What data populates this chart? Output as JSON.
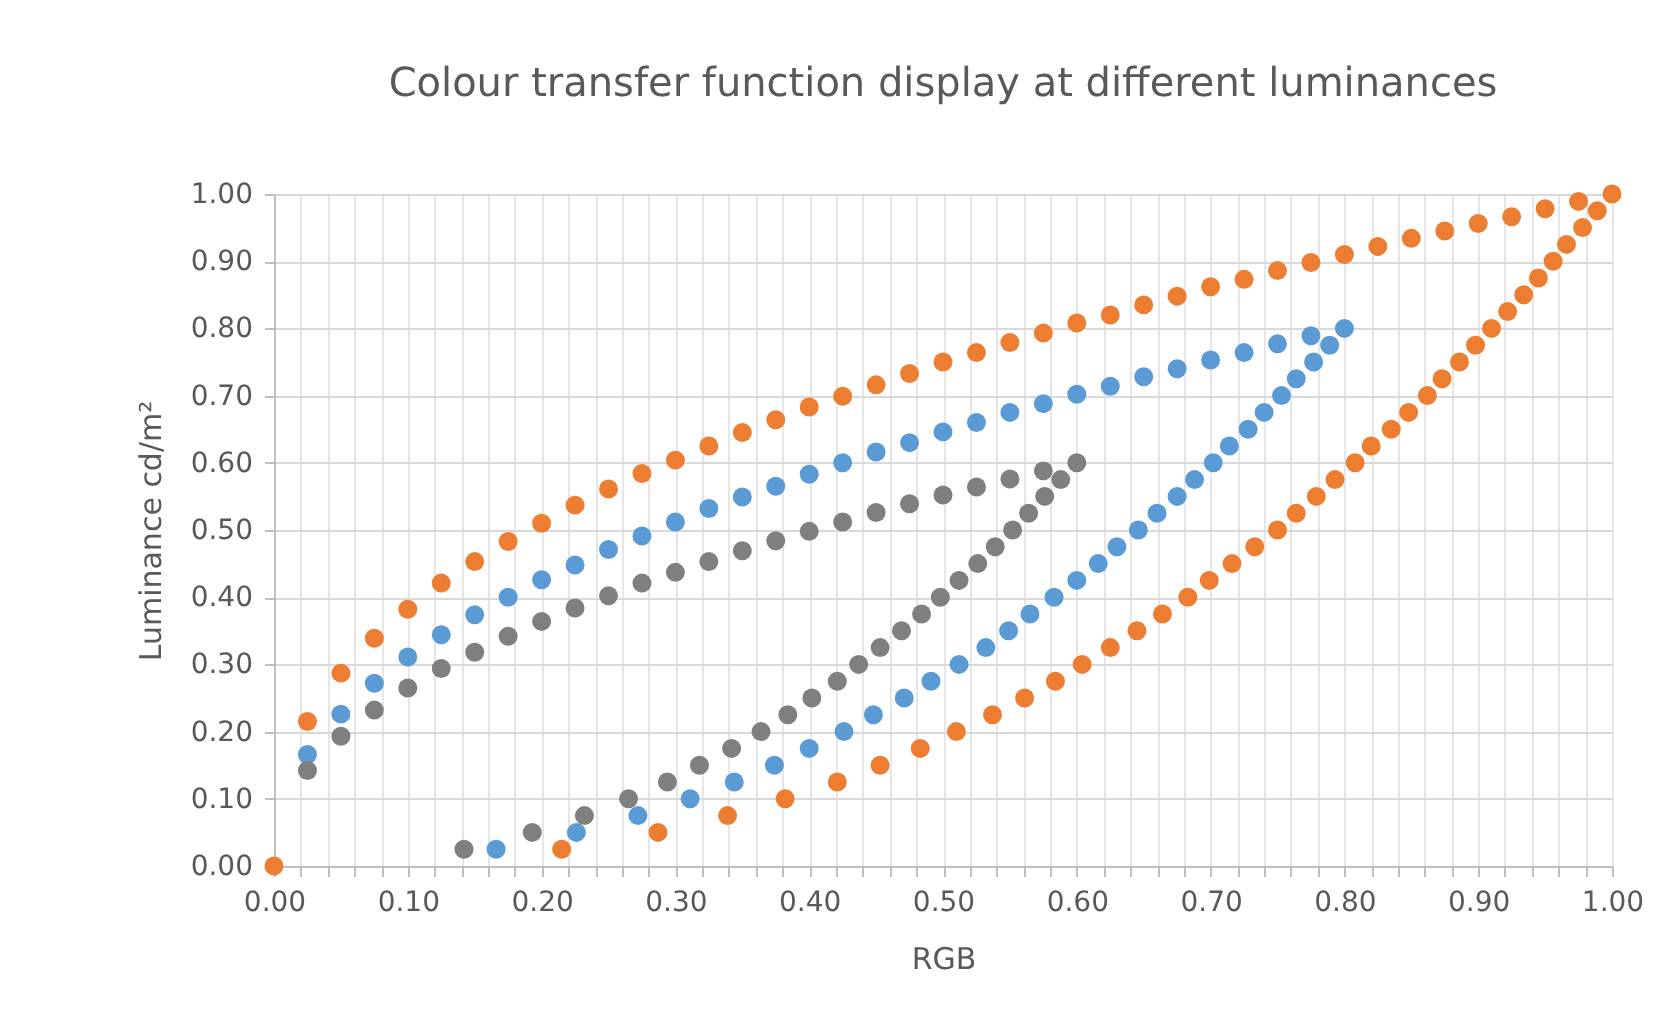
{
  "chart_data": {
    "type": "scatter",
    "title": "Colour transfer function display at different luminances",
    "xlabel": "RGB",
    "ylabel": "Luminance cd/m²",
    "xlim": [
      0,
      1
    ],
    "ylim": [
      0,
      1
    ],
    "xticks": [
      {
        "value": 0,
        "label": "0.00"
      },
      {
        "value": 0.02,
        "label": null
      },
      {
        "value": 0.04,
        "label": null
      },
      {
        "value": 0.06,
        "label": null
      },
      {
        "value": 0.08,
        "label": null
      },
      {
        "value": 0.1,
        "label": "0.10"
      },
      {
        "value": 0.12,
        "label": null
      },
      {
        "value": 0.14,
        "label": null
      },
      {
        "value": 0.16,
        "label": null
      },
      {
        "value": 0.18,
        "label": null
      },
      {
        "value": 0.2,
        "label": "0.20"
      },
      {
        "value": 0.22,
        "label": null
      },
      {
        "value": 0.24,
        "label": null
      },
      {
        "value": 0.26,
        "label": null
      },
      {
        "value": 0.28,
        "label": null
      },
      {
        "value": 0.3,
        "label": "0.30"
      },
      {
        "value": 0.32,
        "label": null
      },
      {
        "value": 0.34,
        "label": null
      },
      {
        "value": 0.36,
        "label": null
      },
      {
        "value": 0.38,
        "label": null
      },
      {
        "value": 0.4,
        "label": "0.40"
      },
      {
        "value": 0.42,
        "label": null
      },
      {
        "value": 0.44,
        "label": null
      },
      {
        "value": 0.46,
        "label": null
      },
      {
        "value": 0.48,
        "label": null
      },
      {
        "value": 0.5,
        "label": "0.50"
      },
      {
        "value": 0.52,
        "label": null
      },
      {
        "value": 0.54,
        "label": null
      },
      {
        "value": 0.56,
        "label": null
      },
      {
        "value": 0.58,
        "label": null
      },
      {
        "value": 0.6,
        "label": "0.60"
      },
      {
        "value": 0.62,
        "label": null
      },
      {
        "value": 0.64,
        "label": null
      },
      {
        "value": 0.66,
        "label": null
      },
      {
        "value": 0.68,
        "label": null
      },
      {
        "value": 0.7,
        "label": "0.70"
      },
      {
        "value": 0.72,
        "label": null
      },
      {
        "value": 0.74,
        "label": null
      },
      {
        "value": 0.76,
        "label": null
      },
      {
        "value": 0.78,
        "label": null
      },
      {
        "value": 0.8,
        "label": "0.80"
      },
      {
        "value": 0.82,
        "label": null
      },
      {
        "value": 0.84,
        "label": null
      },
      {
        "value": 0.86,
        "label": null
      },
      {
        "value": 0.88,
        "label": null
      },
      {
        "value": 0.9,
        "label": "0.90"
      },
      {
        "value": 0.92,
        "label": null
      },
      {
        "value": 0.94,
        "label": null
      },
      {
        "value": 0.96,
        "label": null
      },
      {
        "value": 0.98,
        "label": null
      },
      {
        "value": 1,
        "label": "1.00"
      }
    ],
    "yticks": [
      {
        "value": 0,
        "label": "0.00"
      },
      {
        "value": 0.1,
        "label": "0.10"
      },
      {
        "value": 0.2,
        "label": "0.20"
      },
      {
        "value": 0.3,
        "label": "0.30"
      },
      {
        "value": 0.4,
        "label": "0.40"
      },
      {
        "value": 0.5,
        "label": "0.50"
      },
      {
        "value": 0.6,
        "label": "0.60"
      },
      {
        "value": 0.7,
        "label": "0.70"
      },
      {
        "value": 0.8,
        "label": "0.80"
      },
      {
        "value": 0.9,
        "label": "0.90"
      },
      {
        "value": 1,
        "label": "1.00"
      }
    ],
    "grid": true,
    "legend": false,
    "marker": "circle",
    "series": [
      {
        "color": "#ed7d31",
        "x": [
          0,
          0.025,
          0.05,
          0.075,
          0.1,
          0.125,
          0.15,
          0.175,
          0.2,
          0.225,
          0.25,
          0.275,
          0.3,
          0.325,
          0.35,
          0.375,
          0.4,
          0.425,
          0.45,
          0.475,
          0.5,
          0.525,
          0.55,
          0.575,
          0.6,
          0.625,
          0.65,
          0.675,
          0.7,
          0.725,
          0.75,
          0.775,
          0.8,
          0.825,
          0.85,
          0.875,
          0.9,
          0.925,
          0.95,
          0.975,
          1
        ],
        "values": [
          0,
          0.215,
          0.287,
          0.339,
          0.382,
          0.421,
          0.453,
          0.483,
          0.51,
          0.537,
          0.561,
          0.584,
          0.604,
          0.625,
          0.645,
          0.664,
          0.683,
          0.699,
          0.716,
          0.733,
          0.75,
          0.764,
          0.779,
          0.793,
          0.808,
          0.82,
          0.835,
          0.848,
          0.862,
          0.873,
          0.886,
          0.898,
          0.91,
          0.922,
          0.934,
          0.945,
          0.956,
          0.966,
          0.978,
          0.989,
          1
        ]
      },
      {
        "color": "#ed7d31",
        "x": [
          0.215,
          0.287,
          0.339,
          0.382,
          0.421,
          0.453,
          0.483,
          0.51,
          0.537,
          0.561,
          0.584,
          0.604,
          0.625,
          0.645,
          0.664,
          0.683,
          0.699,
          0.716,
          0.733,
          0.75,
          0.764,
          0.779,
          0.793,
          0.808,
          0.82,
          0.835,
          0.848,
          0.862,
          0.873,
          0.886,
          0.898,
          0.91,
          0.922,
          0.934,
          0.945,
          0.956,
          0.966,
          0.978,
          0.989
        ],
        "values": [
          0.025,
          0.05,
          0.075,
          0.1,
          0.125,
          0.15,
          0.175,
          0.2,
          0.225,
          0.25,
          0.275,
          0.3,
          0.325,
          0.35,
          0.375,
          0.4,
          0.425,
          0.45,
          0.475,
          0.5,
          0.525,
          0.55,
          0.575,
          0.6,
          0.625,
          0.65,
          0.675,
          0.7,
          0.725,
          0.75,
          0.775,
          0.8,
          0.825,
          0.85,
          0.875,
          0.9,
          0.925,
          0.95,
          0.975
        ]
      },
      {
        "color": "#5b9bd5",
        "x": [
          0.025,
          0.05,
          0.075,
          0.1,
          0.125,
          0.15,
          0.175,
          0.2,
          0.225,
          0.25,
          0.275,
          0.3,
          0.325,
          0.35,
          0.375,
          0.4,
          0.425,
          0.45,
          0.475,
          0.5,
          0.525,
          0.55,
          0.575,
          0.6,
          0.625,
          0.65,
          0.675,
          0.7,
          0.725,
          0.75,
          0.775,
          0.8
        ],
        "values": [
          0.166,
          0.226,
          0.272,
          0.311,
          0.344,
          0.374,
          0.4,
          0.426,
          0.448,
          0.471,
          0.491,
          0.512,
          0.532,
          0.549,
          0.565,
          0.583,
          0.6,
          0.616,
          0.63,
          0.646,
          0.66,
          0.675,
          0.688,
          0.702,
          0.714,
          0.728,
          0.74,
          0.753,
          0.764,
          0.777,
          0.789,
          0.8
        ]
      },
      {
        "color": "#5b9bd5",
        "x": [
          0.166,
          0.226,
          0.272,
          0.311,
          0.344,
          0.374,
          0.4,
          0.426,
          0.448,
          0.471,
          0.491,
          0.512,
          0.532,
          0.549,
          0.565,
          0.583,
          0.6,
          0.616,
          0.63,
          0.646,
          0.66,
          0.675,
          0.688,
          0.702,
          0.714,
          0.728,
          0.74,
          0.753,
          0.764,
          0.777,
          0.789
        ],
        "values": [
          0.025,
          0.05,
          0.075,
          0.1,
          0.125,
          0.15,
          0.175,
          0.2,
          0.225,
          0.25,
          0.275,
          0.3,
          0.325,
          0.35,
          0.375,
          0.4,
          0.425,
          0.45,
          0.475,
          0.5,
          0.525,
          0.55,
          0.575,
          0.6,
          0.625,
          0.65,
          0.675,
          0.7,
          0.725,
          0.75,
          0.775
        ]
      },
      {
        "color": "#7f7f7f",
        "x": [
          0.025,
          0.05,
          0.075,
          0.1,
          0.125,
          0.15,
          0.175,
          0.2,
          0.225,
          0.25,
          0.275,
          0.3,
          0.325,
          0.35,
          0.375,
          0.4,
          0.425,
          0.45,
          0.475,
          0.5,
          0.525,
          0.55,
          0.575,
          0.6
        ],
        "values": [
          0.142,
          0.193,
          0.232,
          0.265,
          0.294,
          0.318,
          0.342,
          0.364,
          0.384,
          0.402,
          0.421,
          0.437,
          0.453,
          0.469,
          0.484,
          0.498,
          0.512,
          0.526,
          0.539,
          0.552,
          0.564,
          0.576,
          0.588,
          0.6
        ]
      },
      {
        "color": "#7f7f7f",
        "x": [
          0.142,
          0.193,
          0.232,
          0.265,
          0.294,
          0.318,
          0.342,
          0.364,
          0.384,
          0.402,
          0.421,
          0.437,
          0.453,
          0.469,
          0.484,
          0.498,
          0.512,
          0.526,
          0.539,
          0.552,
          0.564,
          0.576,
          0.588
        ],
        "values": [
          0.025,
          0.05,
          0.075,
          0.1,
          0.125,
          0.15,
          0.175,
          0.2,
          0.225,
          0.25,
          0.275,
          0.3,
          0.325,
          0.35,
          0.375,
          0.4,
          0.425,
          0.45,
          0.475,
          0.5,
          0.525,
          0.55,
          0.575
        ]
      }
    ]
  }
}
